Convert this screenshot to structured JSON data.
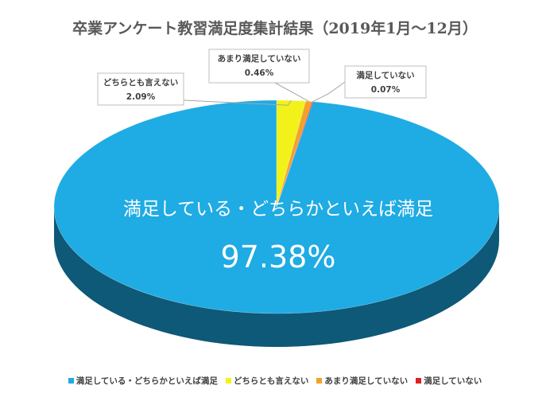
{
  "chart_data": {
    "type": "pie",
    "title": "卒業アンケート教習満足度集計結果（2019年1月～12月）",
    "slices": [
      {
        "label": "満足している・どちらかといえば満足",
        "value": 97.38,
        "value_label": "97.38%",
        "color": "#1fabe3",
        "dark": "#0e5878"
      },
      {
        "label": "どちらとも言えない",
        "value": 2.09,
        "value_label": "2.09%",
        "color": "#f2f21a",
        "dark": "#8d8d08"
      },
      {
        "label": "あまり満足していない",
        "value": 0.46,
        "value_label": "0.46%",
        "color": "#f2a22a",
        "dark": "#8c5a0c"
      },
      {
        "label": "満足していない",
        "value": 0.07,
        "value_label": "0.07%",
        "color": "#e02020",
        "dark": "#7a0a0a"
      }
    ],
    "legend_position": "bottom",
    "style": "3d"
  }
}
